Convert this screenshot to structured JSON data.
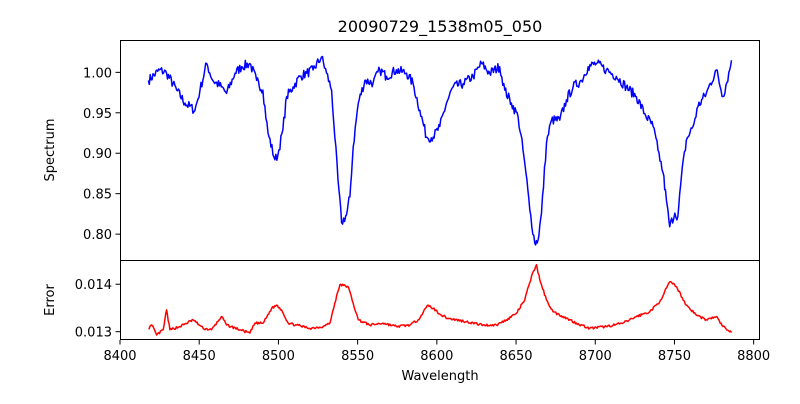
{
  "chart_data": [
    {
      "type": "line",
      "title": "20090729_1538m05_050",
      "xlabel": "",
      "ylabel": "Spectrum",
      "xlim": [
        8400,
        8804
      ],
      "ylim": [
        0.768,
        1.04
      ],
      "yticks": [
        "0.80",
        "0.85",
        "0.90",
        "0.95",
        "1.00"
      ],
      "ytick_values": [
        0.8,
        0.85,
        0.9,
        0.95,
        1.0
      ],
      "grid": false,
      "series": [
        {
          "name": "Spectrum",
          "color": "#0000ff",
          "x": [
            8417.9,
            8425,
            8429.4,
            8435.8,
            8441,
            8447.3,
            8450.5,
            8454.7,
            8458.6,
            8464,
            8467.3,
            8472.6,
            8476.8,
            8482,
            8486.2,
            8490.2,
            8493.4,
            8497.8,
            8499.7,
            8502.8,
            8505.2,
            8509.3,
            8513.6,
            8517.8,
            8521.9,
            8527.2,
            8530.4,
            8533.6,
            8535.6,
            8537.6,
            8539.9,
            8543,
            8545.1,
            8547.2,
            8550.4,
            8554.6,
            8559.8,
            8564,
            8568.2,
            8574.5,
            8580.9,
            8585,
            8589.3,
            8593.5,
            8597.7,
            8601.9,
            8606.1,
            8610.3,
            8616.6,
            8622.9,
            8628.2,
            8633.4,
            8639.7,
            8642.9,
            8647.1,
            8651.3,
            8654.4,
            8656.2,
            8658.7,
            8661.8,
            8663.9,
            8666.1,
            8669.2,
            8672.4,
            8677.6,
            8681.8,
            8686,
            8691.3,
            8695.5,
            8700.7,
            8707,
            8713.3,
            8719.6,
            8726,
            8731.2,
            8736.5,
            8739.6,
            8742.8,
            8744.9,
            8747,
            8750.2,
            8752.2,
            8754.4,
            8757.5,
            8761.7,
            8764.9,
            8770.1,
            8776.4,
            8780.6,
            8784.9,
            8786
          ],
          "y": [
            0.99,
            1.003,
            0.999,
            0.978,
            0.962,
            0.953,
            0.978,
            1.011,
            0.99,
            0.982,
            0.974,
            0.999,
            1.007,
            1.011,
            0.99,
            0.978,
            0.925,
            0.892,
            0.898,
            0.929,
            0.97,
            0.982,
            0.995,
            0.999,
            1.003,
            1.019,
            0.999,
            0.978,
            0.92,
            0.867,
            0.814,
            0.824,
            0.846,
            0.908,
            0.962,
            0.99,
            0.987,
            1.003,
            0.995,
            1.003,
            0.999,
            0.986,
            0.953,
            0.92,
            0.92,
            0.933,
            0.962,
            0.982,
            0.986,
            0.995,
            1.011,
            0.999,
            1.007,
            0.978,
            0.962,
            0.945,
            0.904,
            0.876,
            0.83,
            0.789,
            0.793,
            0.826,
            0.913,
            0.941,
            0.941,
            0.966,
            0.982,
            0.99,
            1.007,
            1.011,
            1.003,
            0.995,
            0.982,
            0.97,
            0.949,
            0.933,
            0.904,
            0.876,
            0.842,
            0.809,
            0.826,
            0.822,
            0.871,
            0.916,
            0.933,
            0.958,
            0.974,
            1.003,
            0.97,
            1.003,
            1.015
          ]
        }
      ]
    },
    {
      "type": "line",
      "xlabel": "Wavelength",
      "ylabel": "Error",
      "xlim": [
        8400,
        8804
      ],
      "ylim": [
        0.012825,
        0.01451
      ],
      "xticks": [
        "8400",
        "8450",
        "8500",
        "8550",
        "8600",
        "8650",
        "8700",
        "8750",
        "8800"
      ],
      "xtick_values": [
        8400,
        8450,
        8500,
        8550,
        8600,
        8650,
        8700,
        8750,
        8800
      ],
      "yticks": [
        "0.013",
        "0.014"
      ],
      "ytick_values": [
        0.013,
        0.014
      ],
      "grid": false,
      "series": [
        {
          "name": "Error",
          "color": "#ff0000",
          "x": [
            8417.9,
            8420,
            8423.2,
            8427.3,
            8429.4,
            8431.5,
            8437.9,
            8446.2,
            8452.5,
            8457.8,
            8464.1,
            8467.3,
            8475.7,
            8482,
            8485.2,
            8490.4,
            8495.7,
            8498.8,
            8502,
            8506.2,
            8511.4,
            8519.9,
            8528.3,
            8532.5,
            8535.6,
            8538.8,
            8544,
            8547.2,
            8550.4,
            8557.7,
            8566.1,
            8574.5,
            8583,
            8588.2,
            8594.5,
            8597.7,
            8602.9,
            8607.1,
            8618.7,
            8629.2,
            8637.6,
            8643.9,
            8650.3,
            8655.5,
            8659.7,
            8662.9,
            8665,
            8669.2,
            8673.4,
            8679.7,
            8688.1,
            8696.5,
            8707,
            8717.6,
            8726,
            8734.4,
            8740.7,
            8747,
            8751.2,
            8757.5,
            8763.9,
            8770.1,
            8776.4,
            8780.6,
            8786
          ],
          "y": [
            0.01307,
            0.01314,
            0.01293,
            0.01304,
            0.01346,
            0.01304,
            0.01311,
            0.01325,
            0.01307,
            0.01304,
            0.01332,
            0.01314,
            0.01304,
            0.01297,
            0.01318,
            0.01318,
            0.01349,
            0.01356,
            0.01346,
            0.01318,
            0.01314,
            0.01307,
            0.01311,
            0.01318,
            0.0136,
            0.01399,
            0.01395,
            0.0136,
            0.01325,
            0.01314,
            0.01318,
            0.01311,
            0.01314,
            0.01325,
            0.01356,
            0.01349,
            0.01335,
            0.01328,
            0.01321,
            0.01314,
            0.01314,
            0.01325,
            0.01339,
            0.01367,
            0.01416,
            0.01441,
            0.01409,
            0.01367,
            0.01342,
            0.01332,
            0.01318,
            0.01307,
            0.01311,
            0.01318,
            0.01332,
            0.01342,
            0.01363,
            0.01405,
            0.01395,
            0.01356,
            0.01335,
            0.01325,
            0.01332,
            0.01311,
            0.01298
          ]
        }
      ]
    }
  ]
}
